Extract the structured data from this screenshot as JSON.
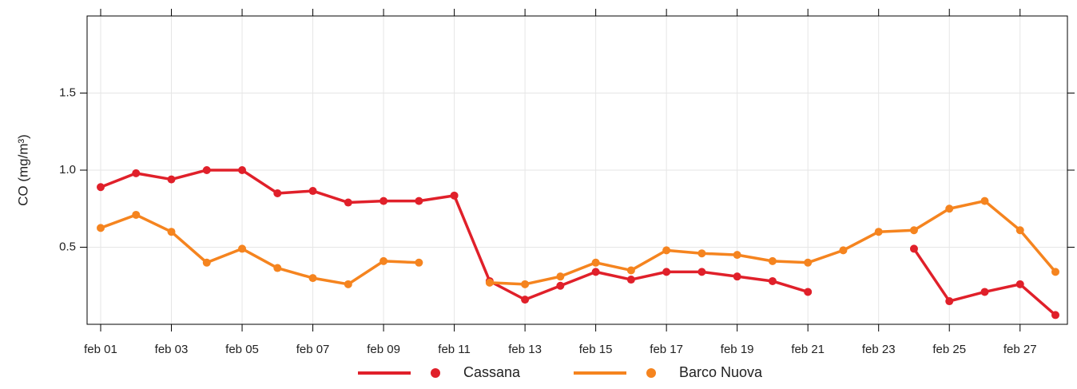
{
  "chart_data": {
    "type": "line",
    "y_label": "CO (mg/m³)",
    "categories": [
      "feb 01",
      null,
      "feb 03",
      null,
      "feb 05",
      null,
      "feb 07",
      null,
      "feb 09",
      null,
      "feb 11",
      null,
      "feb 13",
      null,
      "feb 15",
      null,
      "feb 17",
      null,
      "feb 19",
      null,
      "feb 21",
      null,
      "feb 23",
      null,
      "feb 25",
      null,
      "feb 27",
      null
    ],
    "series": [
      {
        "name": "Cassana",
        "color": "#e0202a",
        "values": [
          0.89,
          0.98,
          0.94,
          1.0,
          1.0,
          0.85,
          0.865,
          0.79,
          0.8,
          0.8,
          0.835,
          0.28,
          0.16,
          0.25,
          0.34,
          0.29,
          0.34,
          0.34,
          0.31,
          0.28,
          0.21,
          null,
          null,
          0.49,
          0.15,
          0.21,
          0.26,
          0.06
        ]
      },
      {
        "name": "Barco Nuova",
        "color": "#f5841f",
        "values": [
          0.625,
          0.71,
          0.6,
          0.4,
          0.49,
          0.365,
          0.3,
          0.26,
          0.41,
          0.4,
          null,
          0.27,
          0.26,
          0.31,
          0.4,
          0.35,
          0.48,
          0.46,
          0.45,
          0.41,
          0.4,
          0.48,
          0.6,
          0.61,
          0.75,
          0.8,
          0.61,
          0.34
        ]
      }
    ],
    "ylim": [
      0,
      2
    ],
    "yticks": [
      0.5,
      {
        "value": 1,
        "label": "1.0"
      },
      1.5
    ],
    "grid": true,
    "legend": "bottom"
  }
}
